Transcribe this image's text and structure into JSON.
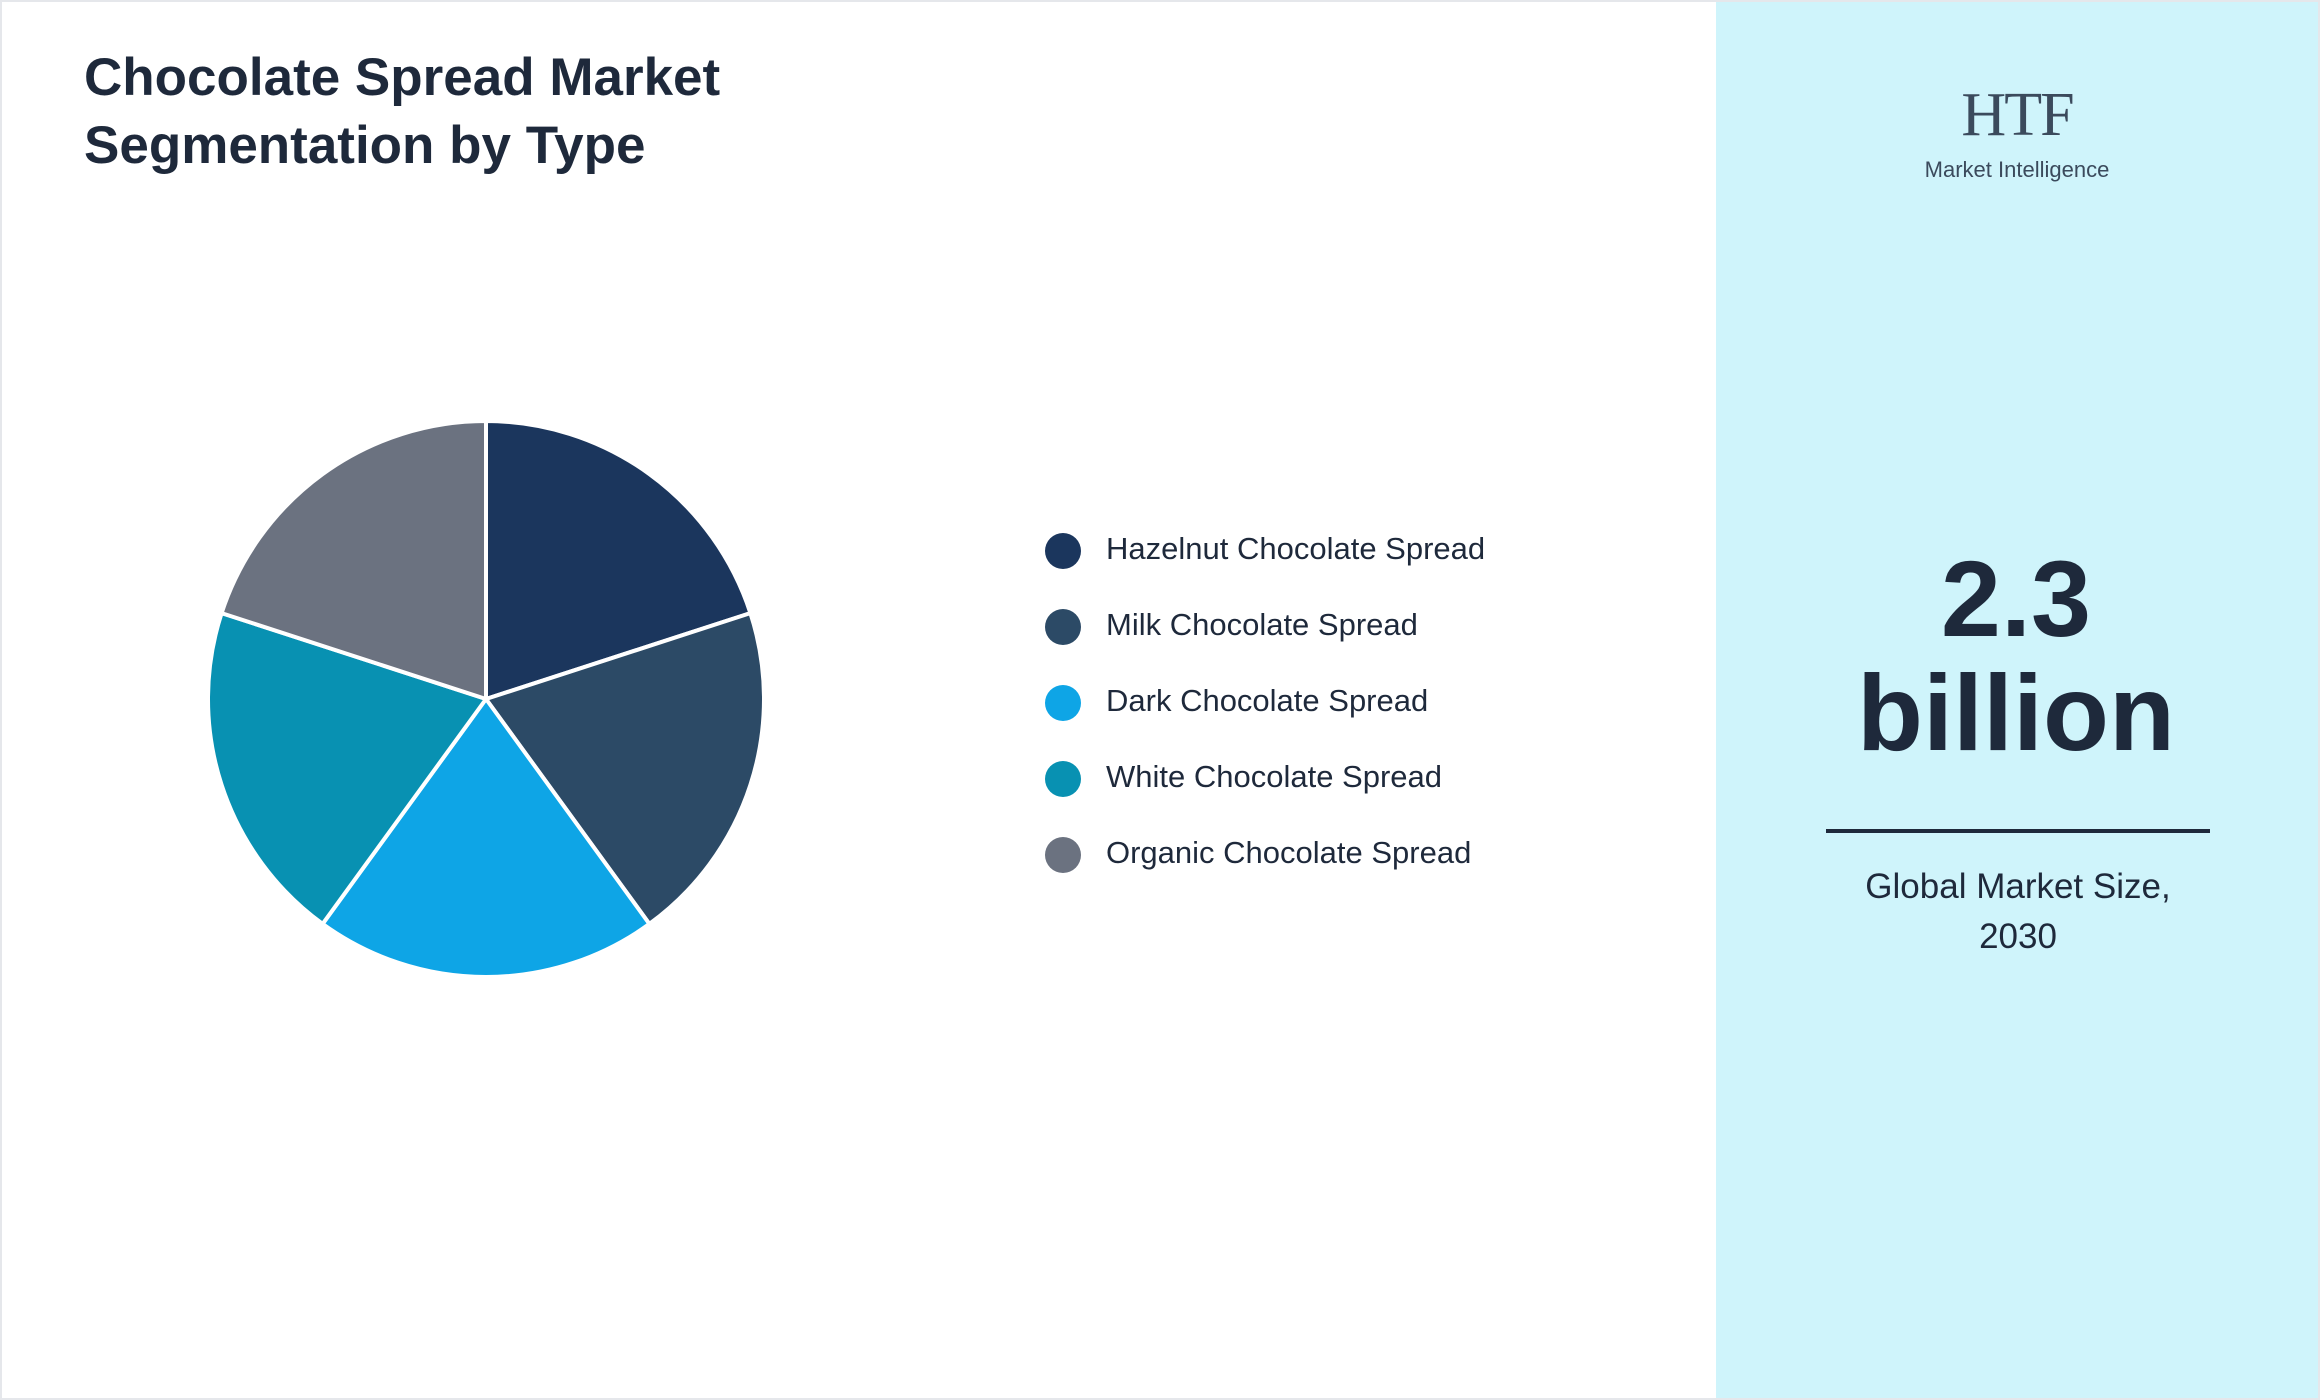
{
  "chart_data": {
    "type": "pie",
    "title": "Chocolate Spread Market Segmentation by Type",
    "categories": [
      "Hazelnut Chocolate Spread",
      "Milk Chocolate Spread",
      "Dark Chocolate Spread",
      "White Chocolate Spread",
      "Organic Chocolate Spread"
    ],
    "values": [
      20,
      20,
      20,
      20,
      20
    ],
    "colors": [
      "#1b365d",
      "#2c4a66",
      "#0ea5e6",
      "#0891b2",
      "#6b7280"
    ]
  },
  "kpi": {
    "value": "2.3 billion",
    "label": "Global Market Size, 2030"
  },
  "logo": {
    "name": "HTF",
    "tagline": "Market Intelligence"
  }
}
